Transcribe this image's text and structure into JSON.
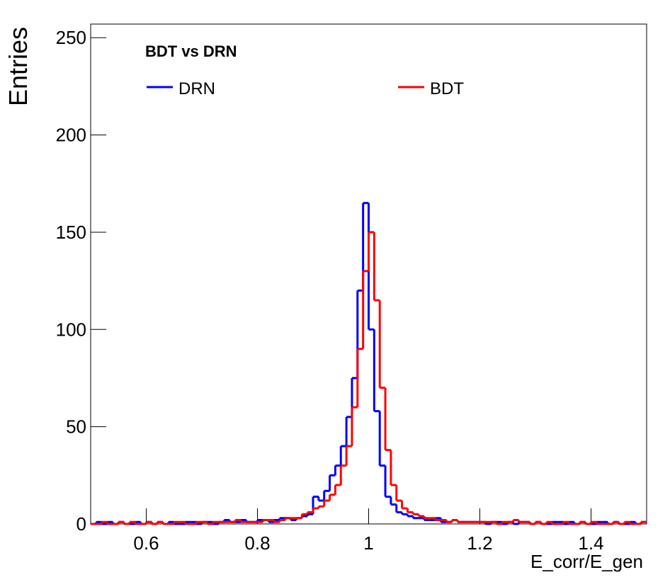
{
  "chart_data": {
    "type": "histogram",
    "title": "BDT vs DRN",
    "x_label": "E_corr/E_gen",
    "y_label": "Entries",
    "bins": [
      0.5,
      0.51,
      0.52,
      0.53,
      0.54,
      0.55,
      0.56,
      0.57,
      0.58,
      0.59,
      0.6,
      0.61,
      0.62,
      0.63,
      0.64,
      0.65,
      0.66,
      0.67,
      0.68,
      0.69,
      0.7,
      0.71,
      0.72,
      0.73,
      0.74,
      0.75,
      0.76,
      0.77,
      0.78,
      0.79,
      0.8,
      0.81,
      0.82,
      0.83,
      0.84,
      0.85,
      0.86,
      0.87,
      0.88,
      0.89,
      0.9,
      0.91,
      0.92,
      0.93,
      0.94,
      0.95,
      0.96,
      0.97,
      0.98,
      0.99,
      1.0,
      1.01,
      1.02,
      1.03,
      1.04,
      1.05,
      1.06,
      1.07,
      1.08,
      1.09,
      1.1,
      1.11,
      1.12,
      1.13,
      1.14,
      1.15,
      1.16,
      1.17,
      1.18,
      1.19,
      1.2,
      1.21,
      1.22,
      1.23,
      1.24,
      1.25,
      1.26,
      1.27,
      1.28,
      1.29,
      1.3,
      1.31,
      1.32,
      1.33,
      1.34,
      1.35,
      1.36,
      1.37,
      1.38,
      1.39,
      1.4,
      1.41,
      1.42,
      1.43,
      1.44,
      1.45,
      1.46,
      1.47,
      1.48,
      1.49,
      1.5
    ],
    "series": [
      {
        "name": "DRN",
        "color": "#0000ff",
        "values": [
          0,
          1,
          0,
          1,
          0,
          1,
          0,
          0,
          1,
          0,
          1,
          0,
          1,
          0,
          1,
          0,
          0,
          1,
          1,
          0,
          1,
          1,
          0,
          1,
          2,
          1,
          1,
          2,
          1,
          1,
          2,
          2,
          1,
          2,
          3,
          3,
          2,
          3,
          4,
          5,
          14,
          12,
          17,
          25,
          30,
          40,
          55,
          75,
          120,
          165,
          100,
          58,
          30,
          14,
          10,
          6,
          5,
          4,
          3,
          3,
          2,
          2,
          3,
          1,
          1,
          2,
          1,
          1,
          1,
          1,
          1,
          0,
          1,
          1,
          0,
          1,
          0,
          1,
          1,
          0,
          1,
          0,
          0,
          1,
          1,
          0,
          1,
          0,
          1,
          0,
          0,
          1,
          1,
          0,
          1,
          0,
          0,
          1,
          0,
          1
        ]
      },
      {
        "name": "BDT",
        "color": "#ff0000",
        "values": [
          0,
          0,
          1,
          0,
          0,
          1,
          0,
          1,
          0,
          0,
          1,
          0,
          1,
          0,
          0,
          1,
          1,
          0,
          0,
          1,
          1,
          0,
          1,
          1,
          1,
          1,
          2,
          1,
          1,
          1,
          1,
          2,
          2,
          1,
          2,
          3,
          3,
          3,
          5,
          6,
          8,
          9,
          12,
          15,
          20,
          30,
          40,
          60,
          90,
          130,
          150,
          115,
          70,
          38,
          20,
          12,
          8,
          6,
          5,
          4,
          3,
          3,
          2,
          2,
          1,
          2,
          1,
          1,
          1,
          1,
          1,
          1,
          1,
          0,
          1,
          1,
          2,
          1,
          1,
          0,
          1,
          0,
          1,
          0,
          0,
          1,
          0,
          0,
          1,
          0,
          1,
          0,
          0,
          0,
          1,
          0,
          1,
          0,
          0,
          1
        ]
      }
    ],
    "xlim": [
      0.5,
      1.5
    ],
    "ylim": [
      0,
      257
    ],
    "xticks": [
      0.6,
      0.8,
      1,
      1.2,
      1.4
    ],
    "yticks": [
      0,
      50,
      100,
      150,
      200,
      250
    ]
  }
}
